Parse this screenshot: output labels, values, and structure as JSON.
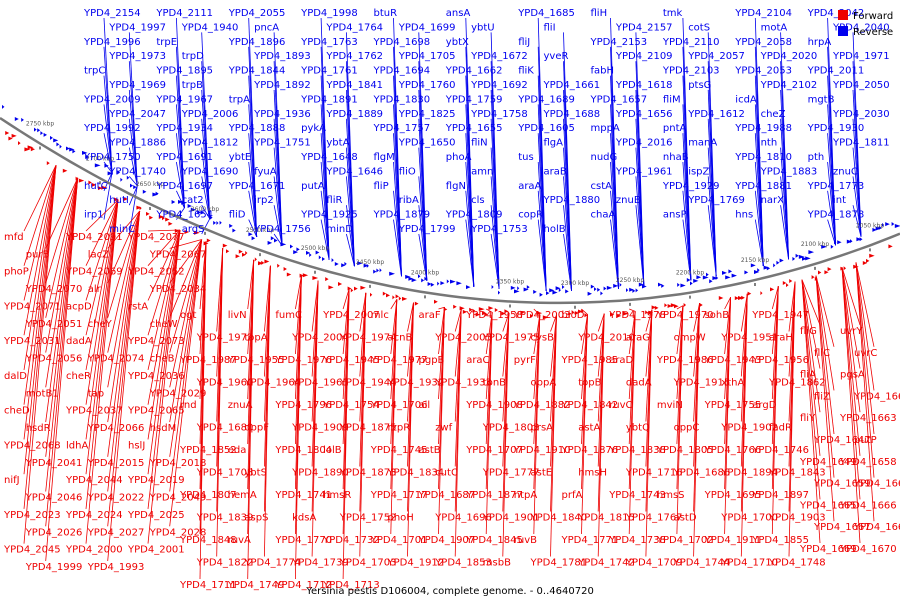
{
  "colors": {
    "forward": "#ee0000",
    "reverse": "#0000ee",
    "backbone": "#777777",
    "text": "#000000"
  },
  "legend": [
    {
      "key": "forward",
      "label": "Forward"
    },
    {
      "key": "reverse",
      "label": "Reverse"
    }
  ],
  "caption": "Yersinia pestis D106004, complete genome. - 0..4640720",
  "ticks": [
    "2750 kbp",
    "2700 kbp",
    "2650 kbp",
    "2600 kbp",
    "2550 kbp",
    "2500 kbp",
    "2450 kbp",
    "2400 kbp",
    "2350 kbp",
    "2300 kbp",
    "2250 kbp",
    "2200 kbp",
    "2150 kbp",
    "2100 kbp",
    "2050 kbp"
  ],
  "labels_reverse_top": [
    "YPD4_2154",
    "YPD4_2111",
    "YPD4_2055",
    "YPD4_1998",
    "btuR",
    "ansA",
    "YPD4_1685",
    "fliH",
    "tmk",
    "YPD4_2104",
    "YPD4_2042",
    "YPD4_1997",
    "YPD4_1940",
    "pncA",
    "YPD4_1764",
    "YPD4_1699",
    "ybtU",
    "fliI",
    "YPD4_2157",
    "cotS",
    "motA",
    "YPD4_2040",
    "YPD4_1996",
    "trpE",
    "YPD4_1896",
    "YPD4_1763",
    "YPD4_1698",
    "ybtX",
    "fliJ",
    "YPD4_2153",
    "YPD4_2110",
    "YPD4_2058",
    "hrpA",
    "YPD4_1973",
    "trpD",
    "YPD4_1893",
    "YPD4_1762",
    "YPD4_1705",
    "YPD4_1672",
    "yveR",
    "YPD4_2109",
    "YPD4_2057",
    "YPD4_2020",
    "YPD4_1971",
    "trpC",
    "YPD4_1895",
    "YPD4_1844",
    "YPD4_1761",
    "YPD4_1694",
    "YPD4_1662",
    "fliK",
    "fabH",
    "YPD4_2103",
    "YPD4_2053",
    "YPD4_2011",
    "YPD4_1969",
    "trpB",
    "YPD4_1892",
    "YPD4_1841",
    "YPD4_1760",
    "YPD4_1692",
    "YPD4_1661",
    "YPD4_1618",
    "ptsG",
    "YPD4_2102",
    "YPD4_2050",
    "YPD4_2009",
    "YPD4_1967",
    "trpA",
    "YPD4_1891",
    "YPD4_1830",
    "YPD4_1759",
    "YPD4_1689",
    "YPD4_1657",
    "fliM",
    "icdA",
    "mgtB",
    "YPD4_2047",
    "YPD4_2006",
    "YPD4_1936",
    "YPD4_1889",
    "YPD4_1825",
    "YPD4_1758",
    "YPD4_1688",
    "YPD4_1656",
    "YPD4_1612",
    "cheZ",
    "YPD4_2030",
    "YPD4_1992",
    "YPD4_1934",
    "YPD4_1888",
    "pykA",
    "YPD4_1757",
    "YPD4_1655",
    "YPD4_1605",
    "mppA",
    "pntA",
    "YPD4_1988",
    "YPD4_1930",
    "YPD4_1886",
    "YPD4_1812",
    "YPD4_1751",
    "ybtA",
    "YPD4_1650",
    "fliN",
    "flgA",
    "YPD4_2016",
    "manA",
    "nth",
    "YPD4_1811",
    "YPD4_1750",
    "YPD4_1691",
    "ybtE",
    "YPD4_1648",
    "flgM",
    "phoA",
    "tus",
    "nudG",
    "nhaB",
    "YPD4_1810",
    "pth",
    "YPD4_1740",
    "YPD4_1690",
    "fyuA",
    "YPD4_1646",
    "fliO",
    "amn",
    "araB",
    "YPD4_1961",
    "ispZ",
    "YPD4_1883",
    "znuC",
    "hutC",
    "YPD4_1697",
    "YPD4_1671",
    "putA",
    "fliP",
    "flgN",
    "araA",
    "cstA",
    "YPD4_1929",
    "YPD4_1881",
    "YPD4_1773",
    "hutI",
    "cat2",
    "irp2",
    "fliR",
    "ribA",
    "cls",
    "YPD4_1880",
    "znuB",
    "YPD4_1769",
    "narX",
    "int",
    "irp1",
    "YPD4_1654",
    "fliD",
    "YPD4_1925",
    "YPD4_1879",
    "YPD4_1809",
    "copR",
    "chaA",
    "ansP",
    "hns",
    "YPD4_1878",
    "minC",
    "argS",
    "YPD4_1756",
    "minD",
    "YPD4_1799",
    "YPD4_1753",
    "holB"
  ],
  "labels_forward_left": [
    "mfd",
    "YPD4_2091",
    "YPD4_2077",
    "purB",
    "lacZ",
    "YPD4_2067",
    "phoP",
    "YPD4_2069",
    "YPD4_2052",
    "YPD4_2070",
    "alr",
    "YPD4_2034",
    "YPD4_2071",
    "acpD",
    "rstA",
    "YPD4_2051",
    "cheY",
    "cheW",
    "YPD4_2031",
    "dadA",
    "YPD4_2073",
    "YPD4_2056",
    "YPD4_2074",
    "cheB",
    "dalD",
    "cheR",
    "YPD4_2036",
    "motB1",
    "tap",
    "YPD4_2029",
    "cheD",
    "YPD4_2037",
    "YPD4_2065",
    "hsdR",
    "YPD4_2066",
    "hsdM",
    "YPD4_2068",
    "ldhA",
    "hslJ",
    "YPD4_2041",
    "YPD4_2015",
    "YPD4_2018",
    "nifJ",
    "YPD4_2044",
    "YPD4_2019",
    "YPD4_2046",
    "YPD4_2022",
    "YPD4_2049",
    "YPD4_2023",
    "YPD4_2024",
    "YPD4_2025",
    "YPD4_2026",
    "YPD4_2027",
    "YPD4_2028",
    "YPD4_2045",
    "YPD4_2000",
    "YPD4_2001",
    "YPD4_1999",
    "YPD4_1993"
  ],
  "labels_forward_mid": [
    "ogt",
    "livN",
    "fumC",
    "YPD4_2007",
    "mlc",
    "araF",
    "YPD4_1958",
    "YPD4_2003",
    "bioD",
    "YPD4_1978",
    "YPD4_1970",
    "sohB",
    "YPD4_1947",
    "YPD4_1972",
    "topA",
    "YPD4_2004",
    "YPD4_1974",
    "acnB",
    "YPD4_2005",
    "YPD4_1975",
    "cysB",
    "YPD4_2010",
    "araG",
    "ompW",
    "YPD4_1951",
    "araH",
    "YPD4_1987",
    "YPD4_1955",
    "YPD4_1976",
    "YPD4_1945",
    "YPD4_1977",
    "pgpB",
    "araC",
    "pyrF",
    "YPD4_1985",
    "araD",
    "YPD4_1986",
    "YPD4_1943",
    "YPD4_1956",
    "YPD4_1960",
    "YPD4_1964",
    "YPD4_1965",
    "YPD4_1944",
    "YPD4_1932",
    "YPD4_1933",
    "tonB",
    "oppA",
    "topB",
    "dadA",
    "YPD4_1915",
    "xthA",
    "YPD4_1862",
    "rnd",
    "znuA",
    "YPD4_1796",
    "YPD4_1754",
    "YPD4_1706",
    "ail",
    "YPD4_1908",
    "YPD4_1882",
    "YPD4_1842",
    "ruvC",
    "mviN",
    "YPD4_1755",
    "argD",
    "YPD4_1680",
    "oppF",
    "YPD4_1909",
    "YPD4_1875",
    "rzpR",
    "zwf",
    "YPD4_1803",
    "prsA",
    "astA",
    "ybtQ",
    "oppC",
    "YPD4_1902",
    "fadR",
    "YPD4_1852",
    "eda",
    "YPD4_1804",
    "lolB",
    "YPD4_1745",
    "astB",
    "YPD4_1707",
    "YPD4_1910",
    "YPD4_1876",
    "YPD4_1838",
    "YPD4_1805",
    "YPD4_1766",
    "YPD4_1746",
    "YPD4_1708",
    "ybtS",
    "YPD4_1890",
    "YPD4_1873",
    "YPD4_1834",
    "cutC",
    "YPD4_1777",
    "astE",
    "hmsH",
    "YPD4_1716",
    "YPD4_1686",
    "YPD4_1894",
    "YPD4_1843",
    "YPD4_1807",
    "hemA",
    "YPD4_1741",
    "hmsR",
    "YPD4_1717",
    "YPD4_1687",
    "YPD4_1877",
    "ntpA",
    "prfA",
    "YPD4_1743",
    "hmsS",
    "YPD4_1695",
    "YPD4_1897",
    "YPD4_1839",
    "aspS",
    "kdsA",
    "YPD4_1752",
    "phoH",
    "YPD4_1696",
    "YPD4_1901",
    "YPD4_1840",
    "YPD4_1815",
    "YPD4_1767",
    "astD",
    "YPD4_1700",
    "YPD4_1903",
    "YPD4_1848",
    "ruvA",
    "YPD4_1770",
    "YPD4_1732",
    "YPD4_1701",
    "YPD4_1907",
    "YPD4_1845",
    "ruvB",
    "YPD4_1771",
    "YPD4_1738",
    "YPD4_1702",
    "YPD4_1911",
    "YPD4_1855",
    "YPD4_1822",
    "YPD4_1774",
    "YPD4_1739",
    "YPD4_1703",
    "YPD4_1912",
    "YPD4_1853",
    "msbB",
    "YPD4_1781",
    "YPD4_1742",
    "YPD4_1709",
    "YPD4_1744",
    "YPD4_1710",
    "YPD4_1748",
    "YPD4_1711",
    "YPD4_1749",
    "YPD4_1712",
    "YPD4_1713"
  ],
  "labels_forward_right": [
    "fliG",
    "uvrY",
    "fliC",
    "uvrC",
    "fliA",
    "pgsA",
    "fliZ",
    "YPD4_1660",
    "fliY",
    "YPD4_1663",
    "YPD4_1647",
    "putP",
    "YPD4_1649",
    "YPD4_1658",
    "YPD4_1659",
    "YPD4_1664",
    "YPD4_1665",
    "YPD4_1666",
    "YPD4_1667",
    "YPD4_1668",
    "YPD4_1669",
    "YPD4_1670"
  ]
}
